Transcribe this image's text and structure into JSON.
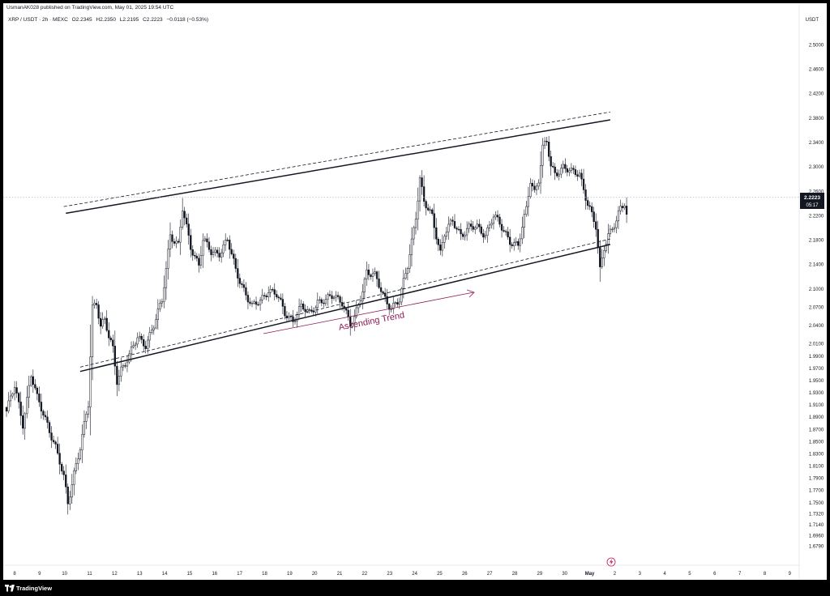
{
  "header": {
    "published_by": "UsmanAK028 published on TradingView.com, May 01, 2025 19:54 UTC",
    "symbol": "XRP / USDT · 2h · MEXC",
    "open": "O2.2345",
    "high": "H2.2350",
    "low": "L2.2195",
    "close": "C2.2223",
    "change": "−0.0118 (−0.53%)"
  },
  "axis_unit": "USDT",
  "price_tag": {
    "price": "2.2223",
    "countdown": "05:17"
  },
  "annotation": {
    "text": "Ascending Trend"
  },
  "footer": {
    "brand": "TradingView"
  },
  "colors": {
    "background": "#ffffff",
    "candle": "#131722",
    "annotation": "#8e1a56",
    "frame": "#000000"
  },
  "chart_data": {
    "type": "candlestick",
    "y_ticks": [
      "2.5000",
      "2.4600",
      "2.4200",
      "2.3800",
      "2.3400",
      "2.3000",
      "2.2600",
      "2.2200",
      "2.1800",
      "2.1400",
      "2.1000",
      "2.0700",
      "2.0400",
      "2.0100",
      "1.9900",
      "1.9700",
      "1.9500",
      "1.9300",
      "1.9100",
      "1.8900",
      "1.8700",
      "1.8500",
      "1.8300",
      "1.8100",
      "1.7900",
      "1.7700",
      "1.7500",
      "1.7320",
      "1.7140",
      "1.6960",
      "1.6790"
    ],
    "x_ticks": [
      "8",
      "9",
      "10",
      "11",
      "12",
      "13",
      "14",
      "15",
      "16",
      "17",
      "18",
      "19",
      "20",
      "21",
      "22",
      "23",
      "24",
      "25",
      "26",
      "27",
      "28",
      "29",
      "30",
      "May",
      "2",
      "3",
      "4",
      "5",
      "6",
      "7",
      "8",
      "9"
    ],
    "last_price": 2.2223,
    "anchors": [
      [
        0,
        1.9
      ],
      [
        4,
        1.94
      ],
      [
        8,
        1.88
      ],
      [
        12,
        1.96
      ],
      [
        15,
        1.92
      ],
      [
        20,
        1.88
      ],
      [
        24,
        1.84
      ],
      [
        28,
        1.79
      ],
      [
        30,
        1.75
      ],
      [
        33,
        1.8
      ],
      [
        36,
        1.84
      ],
      [
        40,
        1.91
      ],
      [
        42,
        2.07
      ],
      [
        44,
        2.08
      ],
      [
        46,
        2.04
      ],
      [
        48,
        2.05
      ],
      [
        50,
        2.02
      ],
      [
        52,
        2.0
      ],
      [
        54,
        1.95
      ],
      [
        56,
        1.97
      ],
      [
        60,
        1.99
      ],
      [
        64,
        2.02
      ],
      [
        68,
        2.01
      ],
      [
        72,
        2.04
      ],
      [
        76,
        2.08
      ],
      [
        80,
        2.19
      ],
      [
        84,
        2.17
      ],
      [
        86,
        2.23
      ],
      [
        88,
        2.2
      ],
      [
        90,
        2.17
      ],
      [
        94,
        2.14
      ],
      [
        96,
        2.18
      ],
      [
        100,
        2.16
      ],
      [
        104,
        2.16
      ],
      [
        108,
        2.18
      ],
      [
        112,
        2.13
      ],
      [
        116,
        2.1
      ],
      [
        120,
        2.07
      ],
      [
        124,
        2.08
      ],
      [
        128,
        2.1
      ],
      [
        132,
        2.09
      ],
      [
        136,
        2.06
      ],
      [
        140,
        2.05
      ],
      [
        144,
        2.07
      ],
      [
        148,
        2.06
      ],
      [
        152,
        2.08
      ],
      [
        156,
        2.08
      ],
      [
        160,
        2.09
      ],
      [
        164,
        2.08
      ],
      [
        168,
        2.04
      ],
      [
        170,
        2.05
      ],
      [
        174,
        2.1
      ],
      [
        176,
        2.13
      ],
      [
        180,
        2.12
      ],
      [
        184,
        2.09
      ],
      [
        188,
        2.07
      ],
      [
        192,
        2.08
      ],
      [
        196,
        2.14
      ],
      [
        198,
        2.18
      ],
      [
        200,
        2.22
      ],
      [
        202,
        2.28
      ],
      [
        204,
        2.24
      ],
      [
        208,
        2.22
      ],
      [
        210,
        2.19
      ],
      [
        212,
        2.16
      ],
      [
        214,
        2.19
      ],
      [
        218,
        2.21
      ],
      [
        222,
        2.19
      ],
      [
        226,
        2.2
      ],
      [
        230,
        2.2
      ],
      [
        234,
        2.19
      ],
      [
        238,
        2.22
      ],
      [
        242,
        2.2
      ],
      [
        246,
        2.18
      ],
      [
        250,
        2.17
      ],
      [
        254,
        2.23
      ],
      [
        256,
        2.28
      ],
      [
        258,
        2.26
      ],
      [
        260,
        2.28
      ],
      [
        262,
        2.33
      ],
      [
        264,
        2.34
      ],
      [
        266,
        2.3
      ],
      [
        268,
        2.29
      ],
      [
        272,
        2.3
      ],
      [
        276,
        2.29
      ],
      [
        280,
        2.29
      ],
      [
        284,
        2.24
      ],
      [
        286,
        2.22
      ],
      [
        288,
        2.2
      ],
      [
        290,
        2.13
      ],
      [
        292,
        2.17
      ],
      [
        294,
        2.19
      ],
      [
        296,
        2.2
      ],
      [
        298,
        2.21
      ],
      [
        300,
        2.23
      ],
      [
        302,
        2.24
      ],
      [
        303,
        2.2223
      ]
    ],
    "trend_lines": [
      {
        "style": "solid",
        "from": [
          29,
          2.224
        ],
        "to": [
          295,
          2.377
        ]
      },
      {
        "style": "dashed",
        "from": [
          28,
          2.235
        ],
        "to": [
          295,
          2.39
        ]
      },
      {
        "style": "solid",
        "from": [
          36,
          1.965
        ],
        "to": [
          295,
          2.173
        ]
      },
      {
        "style": "dashed",
        "from": [
          36,
          1.972
        ],
        "to": [
          295,
          2.182
        ]
      }
    ]
  }
}
